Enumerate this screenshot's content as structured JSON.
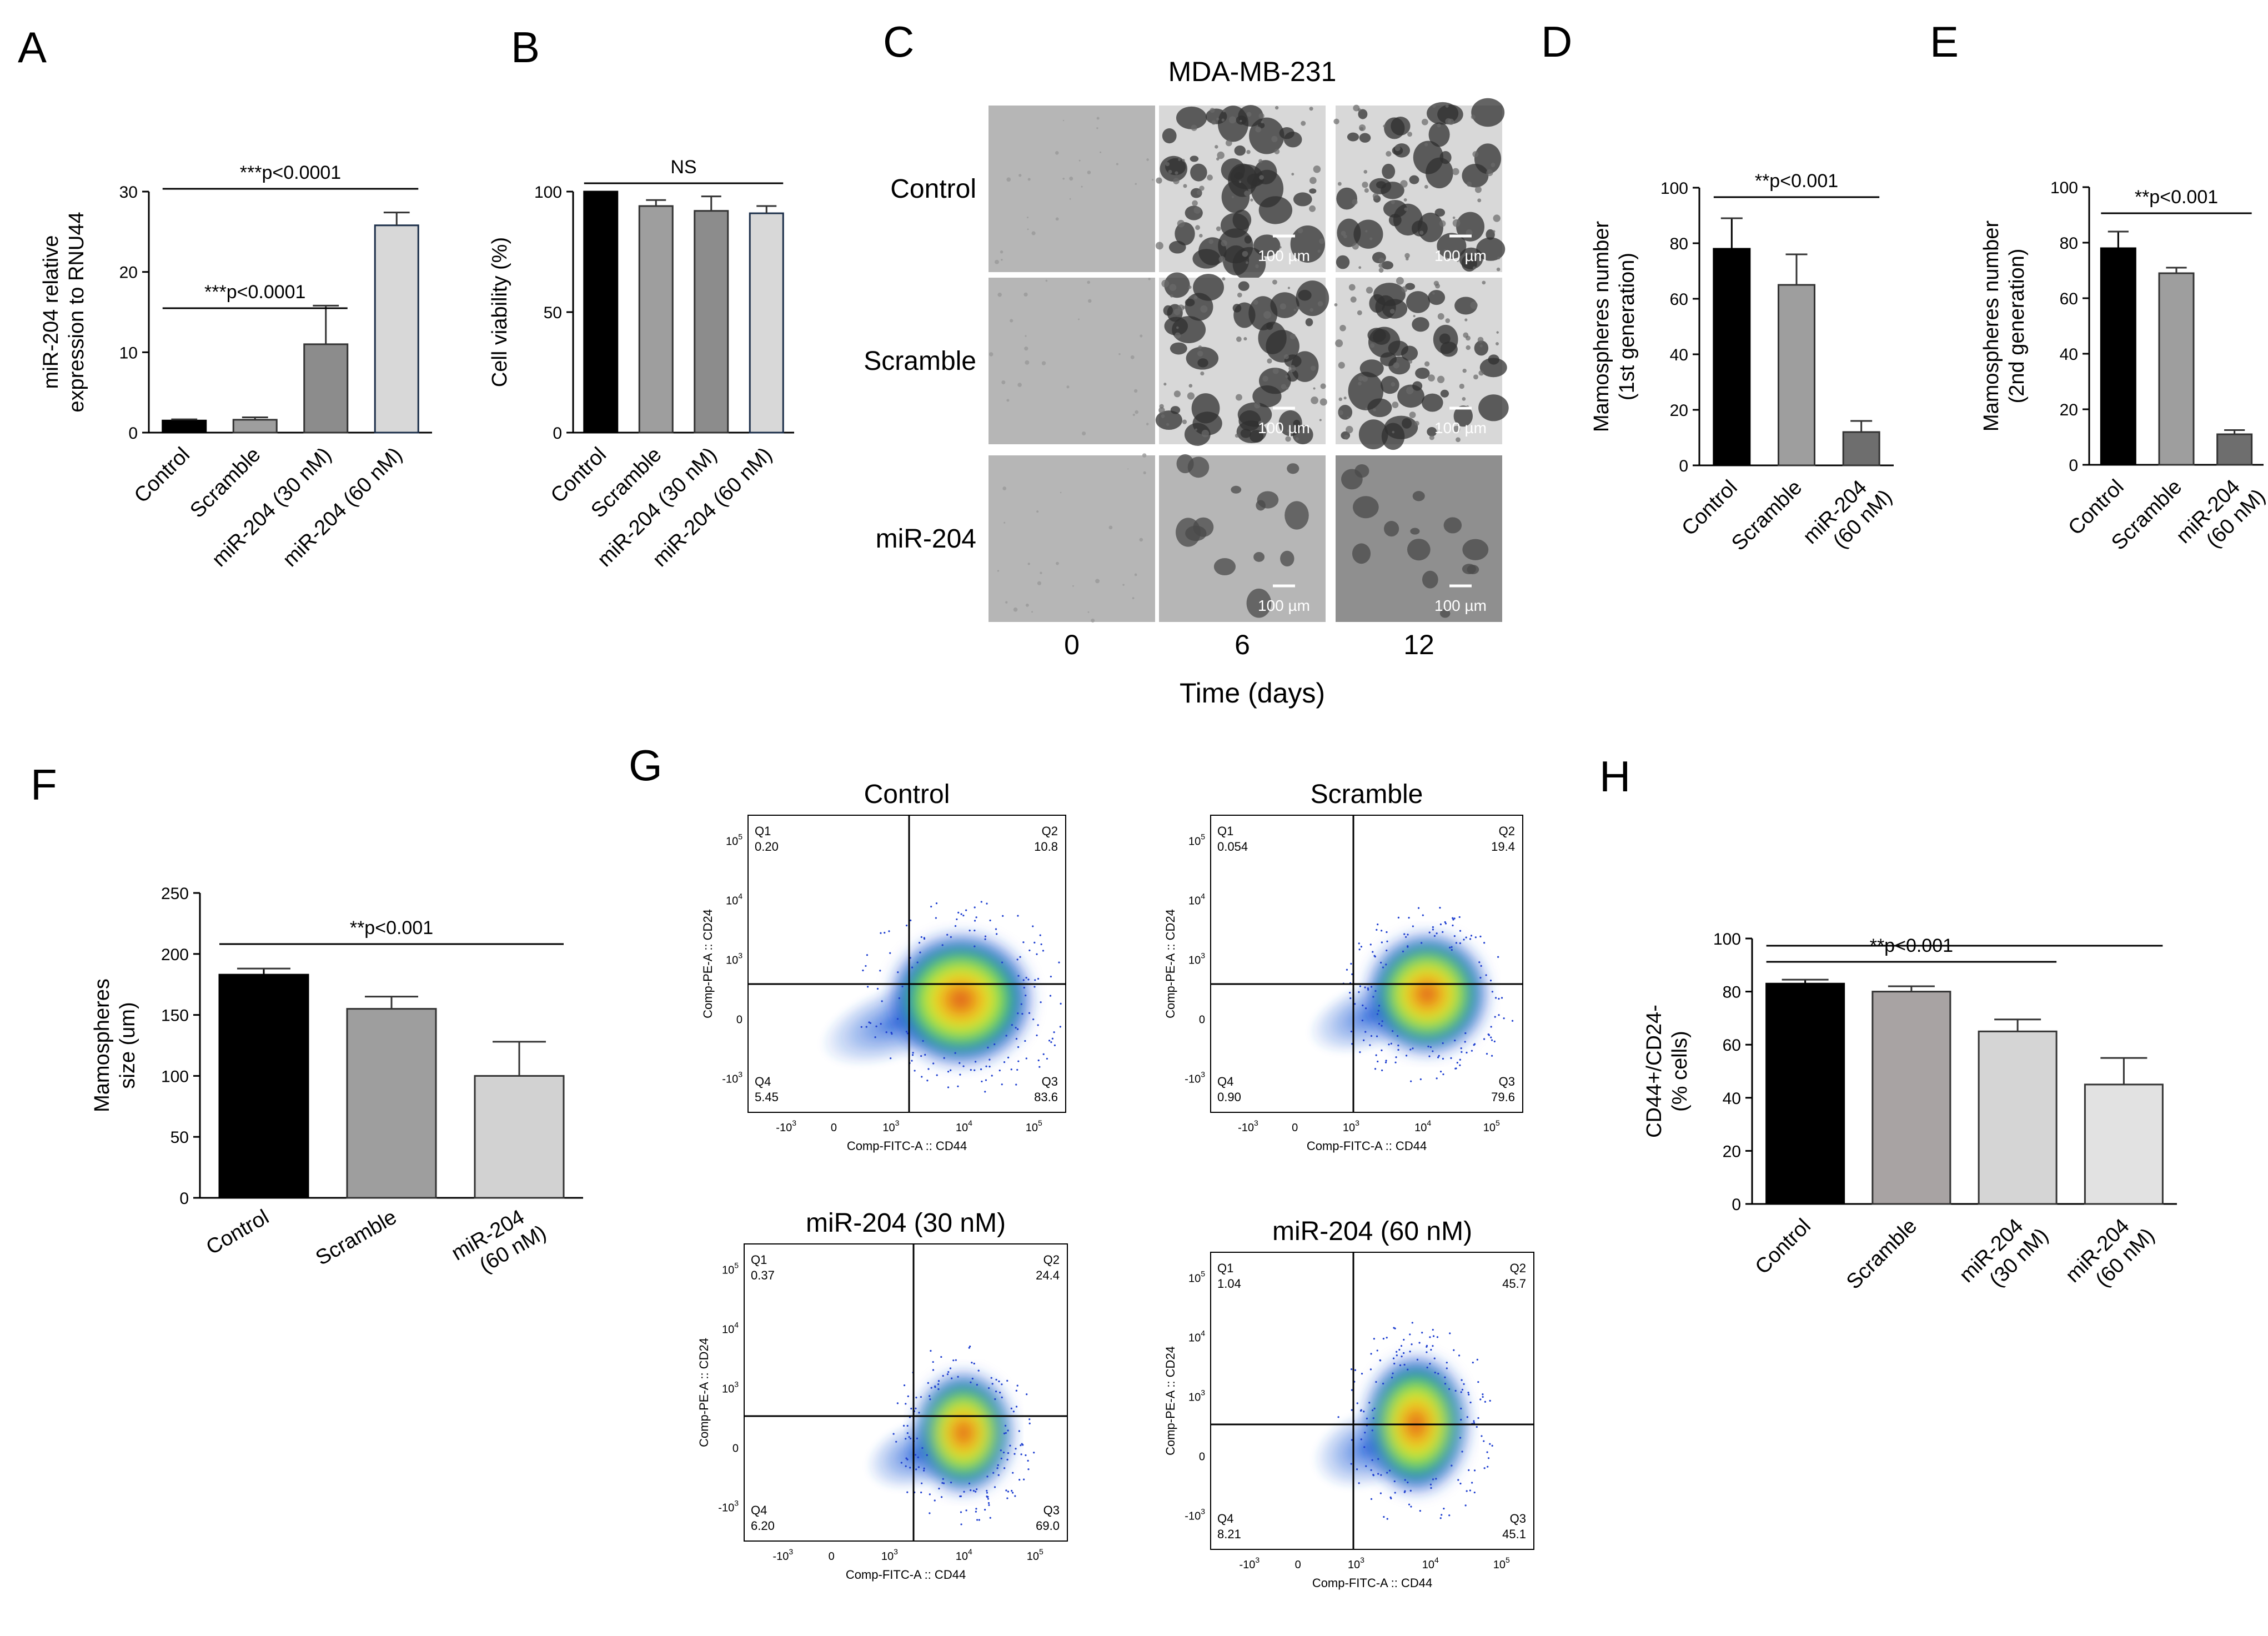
{
  "panel_labels": [
    "A",
    "B",
    "C",
    "D",
    "E",
    "F",
    "G",
    "H"
  ],
  "chart_data": [
    {
      "panel": "A",
      "type": "bar",
      "categories": [
        "Control",
        "Scramble",
        "miR-204 (30 nM)",
        "miR-204 (60 nM)"
      ],
      "values": [
        1.5,
        1.6,
        11.0,
        25.8
      ],
      "errors": [
        0.15,
        0.3,
        4.8,
        1.6
      ],
      "bar_colors": [
        "#000000",
        "#9e9e9e",
        "#8c8c8c",
        "#d8d8d8"
      ],
      "bar_strokes": [
        "#000000",
        "#333333",
        "#333333",
        "#1c2f4a"
      ],
      "ylabel": "miR-204 relative\nexpression to RNU44",
      "ylim": [
        0,
        30
      ],
      "yticks": [
        0,
        10,
        20,
        30
      ],
      "annotations": [
        {
          "text": "***p<0.0001",
          "from": 0,
          "to": 2
        },
        {
          "text": "***p<0.0001",
          "from": 0,
          "to": 3
        }
      ]
    },
    {
      "panel": "B",
      "type": "bar",
      "categories": [
        "Control",
        "Scramble",
        "miR-204 (30 nM)",
        "miR-204 (60 nM)"
      ],
      "values": [
        100,
        94,
        92,
        91
      ],
      "errors": [
        0,
        2.5,
        6,
        3
      ],
      "bar_colors": [
        "#000000",
        "#9e9e9e",
        "#8c8c8c",
        "#d8d8d8"
      ],
      "bar_strokes": [
        "#000000",
        "#333333",
        "#333333",
        "#1c2f4a"
      ],
      "ylabel": "Cell viability (%)",
      "ylim": [
        0,
        100
      ],
      "yticks": [
        0,
        50,
        100
      ],
      "annotations": [
        {
          "text": "NS",
          "from": 0,
          "to": 3
        }
      ]
    },
    {
      "panel": "D",
      "type": "bar",
      "categories": [
        "Control",
        "Scramble",
        "miR-204\n(60 nM)"
      ],
      "values": [
        78,
        65,
        12
      ],
      "errors": [
        11,
        11,
        4
      ],
      "bar_colors": [
        "#000000",
        "#9e9e9e",
        "#6e6e6e"
      ],
      "bar_strokes": [
        "#000000",
        "#333333",
        "#333333"
      ],
      "ylabel": "Mamospheres number\n(1st generation)",
      "ylim": [
        0,
        100
      ],
      "yticks": [
        0,
        20,
        40,
        60,
        80,
        100
      ],
      "annotations": [
        {
          "text": "**p<0.001",
          "from": 0,
          "to": 2
        }
      ]
    },
    {
      "panel": "E",
      "type": "bar",
      "categories": [
        "Control",
        "Scramble",
        "miR-204\n(60 nM)"
      ],
      "values": [
        78,
        69,
        11
      ],
      "errors": [
        6,
        2,
        1.5
      ],
      "bar_colors": [
        "#000000",
        "#9e9e9e",
        "#6e6e6e"
      ],
      "bar_strokes": [
        "#000000",
        "#333333",
        "#333333"
      ],
      "ylabel": "Mamospheres number\n(2nd generation)",
      "ylim": [
        0,
        100
      ],
      "yticks": [
        0,
        20,
        40,
        60,
        80,
        100
      ],
      "annotations": [
        {
          "text": "**p<0.001",
          "from": 0,
          "to": 2
        }
      ]
    },
    {
      "panel": "F",
      "type": "bar",
      "categories": [
        "Control",
        "Scramble",
        "miR-204\n(60 nM)"
      ],
      "values": [
        183,
        155,
        100
      ],
      "errors": [
        5,
        10,
        28
      ],
      "bar_colors": [
        "#000000",
        "#9e9e9e",
        "#d2d2d2"
      ],
      "bar_strokes": [
        "#000000",
        "#333333",
        "#333333"
      ],
      "ylabel": "Mamospheres\nsize (um)",
      "ylim": [
        0,
        250
      ],
      "yticks": [
        0,
        50,
        100,
        150,
        200,
        250
      ],
      "annotations": [
        {
          "text": "**p<0.001",
          "from": 0,
          "to": 2
        }
      ]
    },
    {
      "panel": "H",
      "type": "bar",
      "categories": [
        "Control",
        "Scramble",
        "miR-204\n(30 nM)",
        "miR-204\n(60 nM)"
      ],
      "values": [
        83,
        80,
        65,
        45
      ],
      "errors": [
        1.5,
        2,
        4.5,
        10
      ],
      "bar_colors": [
        "#000000",
        "#a8a3a3",
        "#d5d5d5",
        "#e2e2e2"
      ],
      "bar_strokes": [
        "#000000",
        "#333333",
        "#333333",
        "#333333"
      ],
      "ylabel": "CD44+/CD24-\n(% cells)",
      "ylim": [
        0,
        100
      ],
      "yticks": [
        0,
        20,
        40,
        60,
        80,
        100
      ],
      "annotations": [
        {
          "text": "**p<0.001",
          "from": 0,
          "to": 2
        },
        {
          "text": "",
          "from": 0,
          "to": 3
        }
      ]
    },
    {
      "panel": "G",
      "type": "scatter",
      "xlabel": "Comp-FITC-A :: CD44",
      "ylabel": "Comp-PE-A :: CD24",
      "ticks": [
        "-10",
        "0",
        "10",
        "10",
        "10",
        "10"
      ],
      "tick_exponents": [
        "3",
        "",
        "3",
        "4",
        "5",
        ""
      ],
      "plots": [
        {
          "title": "Control",
          "quadrants": {
            "Q1": "0.20",
            "Q2": "10.8",
            "Q3": "83.6",
            "Q4": "5.45"
          }
        },
        {
          "title": "Scramble",
          "quadrants": {
            "Q1": "0.054",
            "Q2": "19.4",
            "Q3": "79.6",
            "Q4": "0.90"
          }
        },
        {
          "title": "miR-204 (30 nM)",
          "quadrants": {
            "Q1": "0.37",
            "Q2": "24.4",
            "Q3": "69.0",
            "Q4": "6.20"
          }
        },
        {
          "title": "miR-204 (60 nM)",
          "quadrants": {
            "Q1": "1.04",
            "Q2": "45.7",
            "Q3": "45.1",
            "Q4": "8.21"
          }
        }
      ]
    }
  ],
  "micrographs": {
    "title": "MDA-MB-231",
    "rows": [
      "Control",
      "Scramble",
      "miR-204"
    ],
    "columns": [
      "0",
      "6",
      "12"
    ],
    "xlabel": "Time (days)",
    "scale_bar": "100 µm"
  }
}
